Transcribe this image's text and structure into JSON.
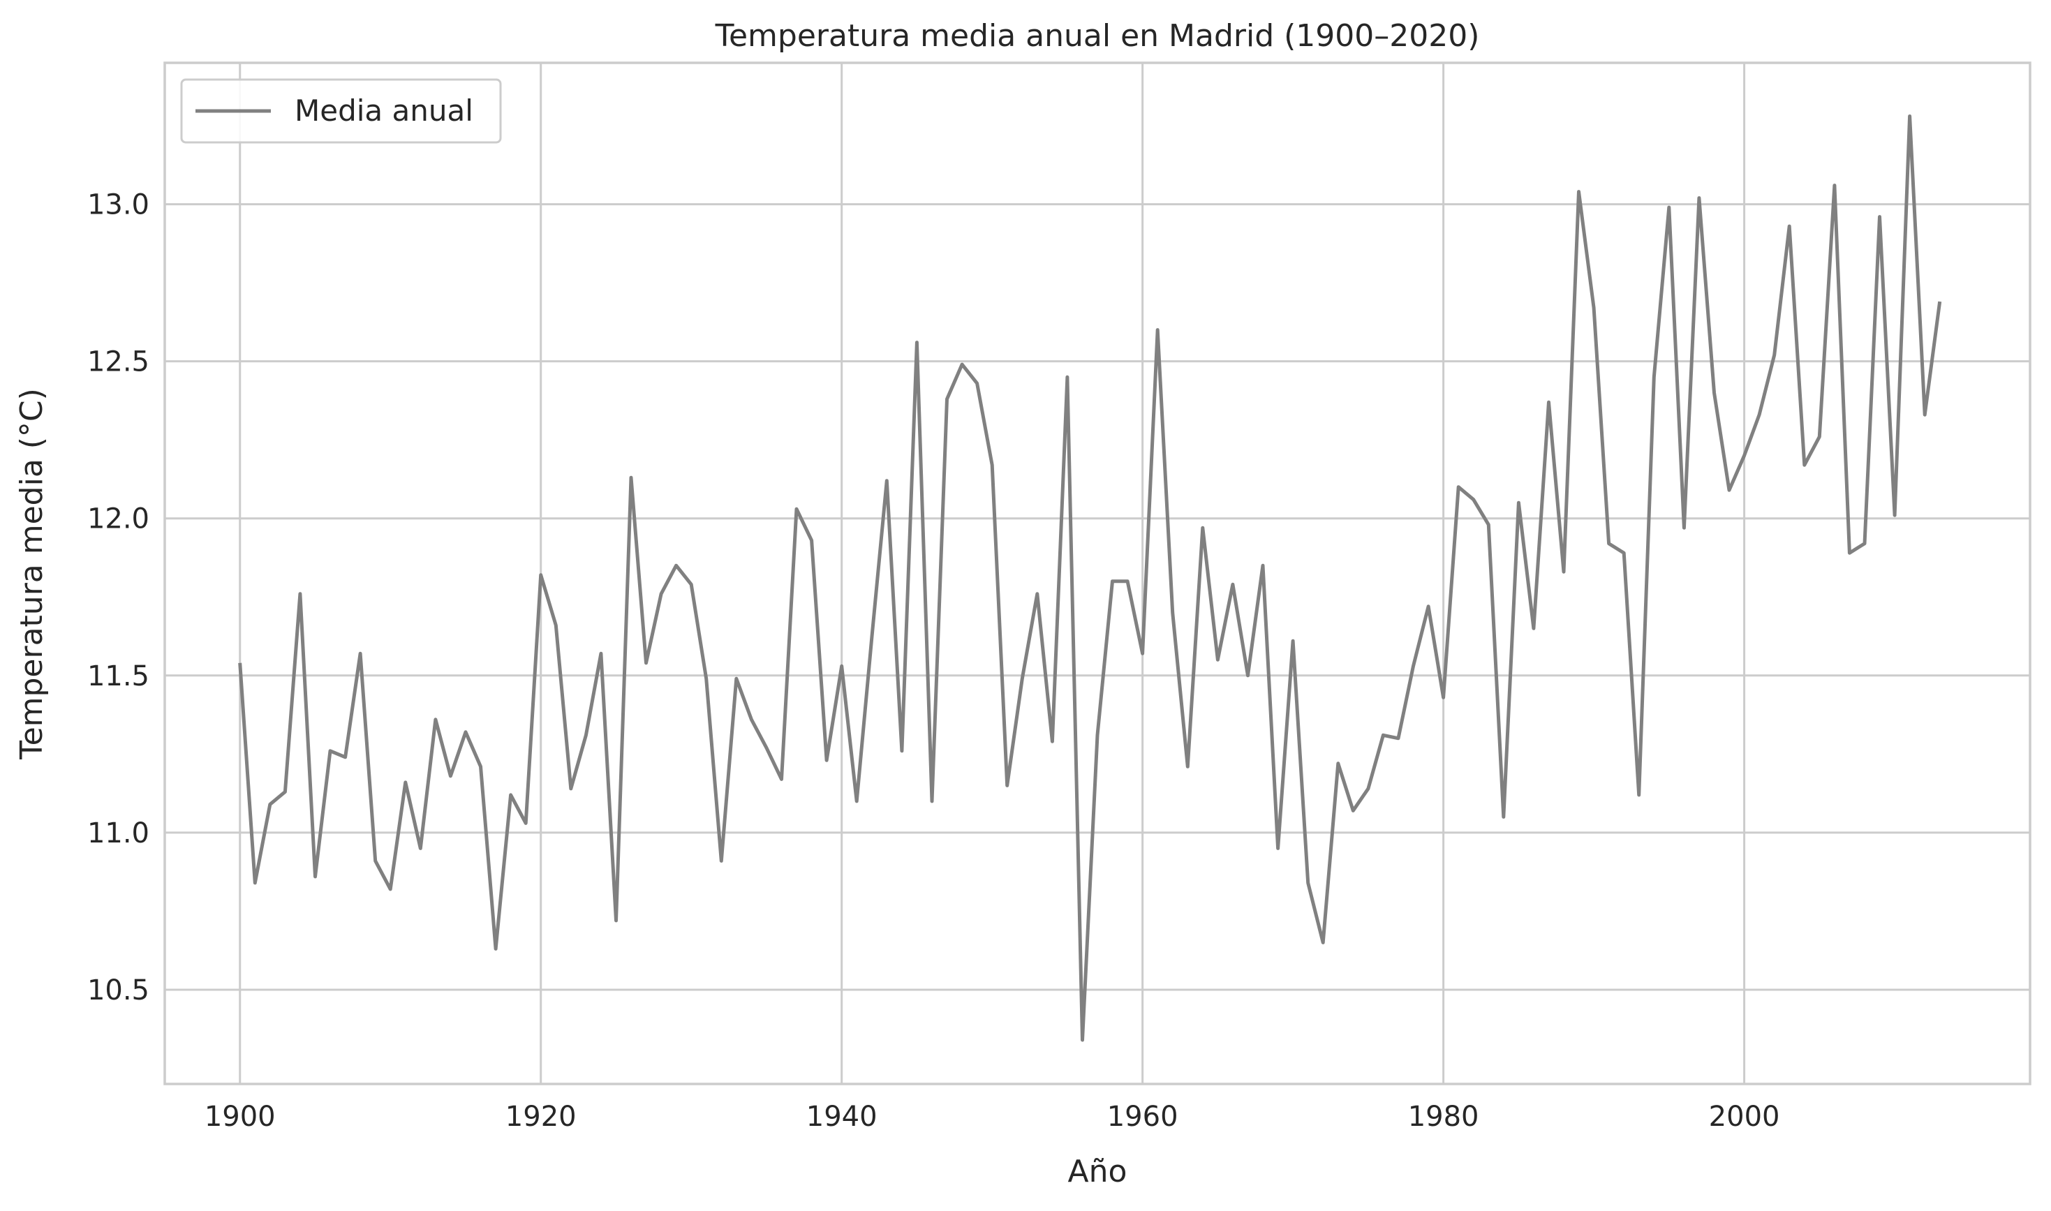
{
  "chart_data": {
    "type": "line",
    "title": "Temperatura media anual en Madrid (1900–2020)",
    "xlabel": "Año",
    "ylabel": "Temperatura media (°C)",
    "xlim": [
      1895,
      2019
    ],
    "ylim": [
      10.2,
      13.45
    ],
    "x_ticks": [
      1900,
      1920,
      1940,
      1960,
      1980,
      2000
    ],
    "y_ticks": [
      10.5,
      11.0,
      11.5,
      12.0,
      12.5,
      13.0
    ],
    "y_tick_labels": [
      "10.5",
      "11.0",
      "11.5",
      "12.0",
      "12.5",
      "13.0"
    ],
    "grid": true,
    "legend_position": "top-left",
    "series": [
      {
        "name": "Media anual",
        "color": "#808080",
        "x": [
          1900,
          1901,
          1902,
          1903,
          1904,
          1905,
          1906,
          1907,
          1908,
          1909,
          1910,
          1911,
          1912,
          1913,
          1914,
          1915,
          1916,
          1917,
          1918,
          1919,
          1920,
          1921,
          1922,
          1923,
          1924,
          1925,
          1926,
          1927,
          1928,
          1929,
          1930,
          1931,
          1932,
          1933,
          1934,
          1935,
          1936,
          1937,
          1938,
          1939,
          1940,
          1941,
          1942,
          1943,
          1944,
          1945,
          1946,
          1947,
          1948,
          1949,
          1950,
          1951,
          1952,
          1953,
          1954,
          1955,
          1956,
          1957,
          1958,
          1959,
          1960,
          1961,
          1962,
          1963,
          1964,
          1965,
          1966,
          1967,
          1968,
          1969,
          1970,
          1971,
          1972,
          1973,
          1974,
          1975,
          1976,
          1977,
          1978,
          1979,
          1980,
          1981,
          1982,
          1983,
          1984,
          1985,
          1986,
          1987,
          1988,
          1989,
          1990,
          1991,
          1992,
          1993,
          1994,
          1995,
          1996,
          1997,
          1998,
          1999,
          2000,
          2001,
          2002,
          2003,
          2004,
          2005,
          2006,
          2007,
          2008,
          2009,
          2010,
          2011,
          2012,
          2013
        ],
        "values": [
          11.54,
          10.84,
          11.09,
          11.13,
          11.76,
          10.86,
          11.26,
          11.24,
          11.57,
          10.91,
          10.82,
          11.16,
          10.95,
          11.36,
          11.18,
          11.32,
          11.21,
          10.63,
          11.12,
          11.03,
          11.82,
          11.66,
          11.14,
          11.31,
          11.57,
          10.72,
          12.13,
          11.54,
          11.76,
          11.85,
          11.79,
          11.49,
          10.91,
          11.49,
          11.36,
          11.27,
          11.17,
          12.03,
          11.93,
          11.23,
          11.53,
          11.1,
          11.62,
          12.12,
          11.26,
          12.56,
          11.1,
          12.38,
          12.49,
          12.43,
          12.17,
          11.15,
          11.49,
          11.76,
          11.29,
          12.45,
          10.34,
          11.31,
          11.8,
          11.8,
          11.57,
          12.6,
          11.7,
          11.21,
          11.97,
          11.55,
          11.79,
          11.5,
          11.85,
          10.95,
          11.61,
          10.84,
          10.65,
          11.22,
          11.07,
          11.14,
          11.31,
          11.3,
          11.53,
          11.72,
          11.43,
          12.1,
          12.06,
          11.98,
          11.05,
          12.05,
          11.65,
          12.37,
          11.83,
          13.04,
          12.67,
          11.92,
          11.89,
          11.12,
          12.45,
          12.99,
          11.97,
          13.02,
          12.4,
          12.09,
          12.2,
          12.33,
          12.52,
          12.93,
          12.17,
          12.26,
          13.06,
          11.89,
          11.92,
          12.96,
          12.01,
          13.28,
          12.33,
          12.69
        ]
      }
    ]
  }
}
